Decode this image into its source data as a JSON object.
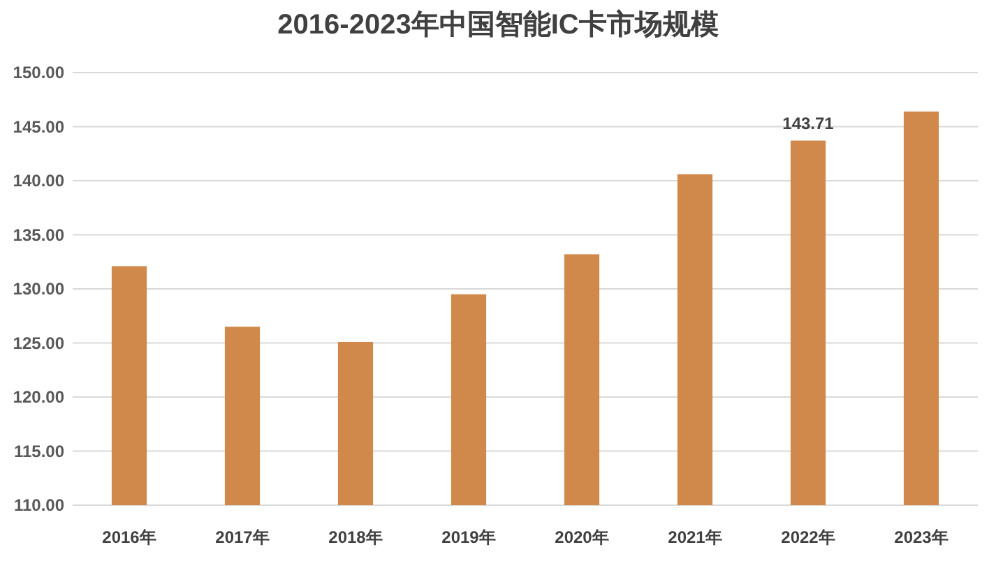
{
  "chart_data": {
    "type": "bar",
    "title": "2016-2023年中国智能IC卡市场规模",
    "categories": [
      "2016年",
      "2017年",
      "2018年",
      "2019年",
      "2020年",
      "2021年",
      "2022年",
      "2023年"
    ],
    "values": [
      132.1,
      126.5,
      125.1,
      129.5,
      133.2,
      140.6,
      143.71,
      146.4
    ],
    "value_labels": [
      null,
      null,
      null,
      null,
      null,
      null,
      "143.71",
      null
    ],
    "color": "#d0894a",
    "ylim": [
      110,
      150
    ],
    "yticks": [
      {
        "value": 110,
        "label": "110.00"
      },
      {
        "value": 115,
        "label": "115.00"
      },
      {
        "value": 120,
        "label": "120.00"
      },
      {
        "value": 125,
        "label": "125.00"
      },
      {
        "value": 130,
        "label": "130.00"
      },
      {
        "value": 135,
        "label": "135.00"
      },
      {
        "value": 140,
        "label": "140.00"
      },
      {
        "value": 145,
        "label": "145.00"
      },
      {
        "value": 150,
        "label": "150.00"
      }
    ],
    "grid": "y"
  }
}
